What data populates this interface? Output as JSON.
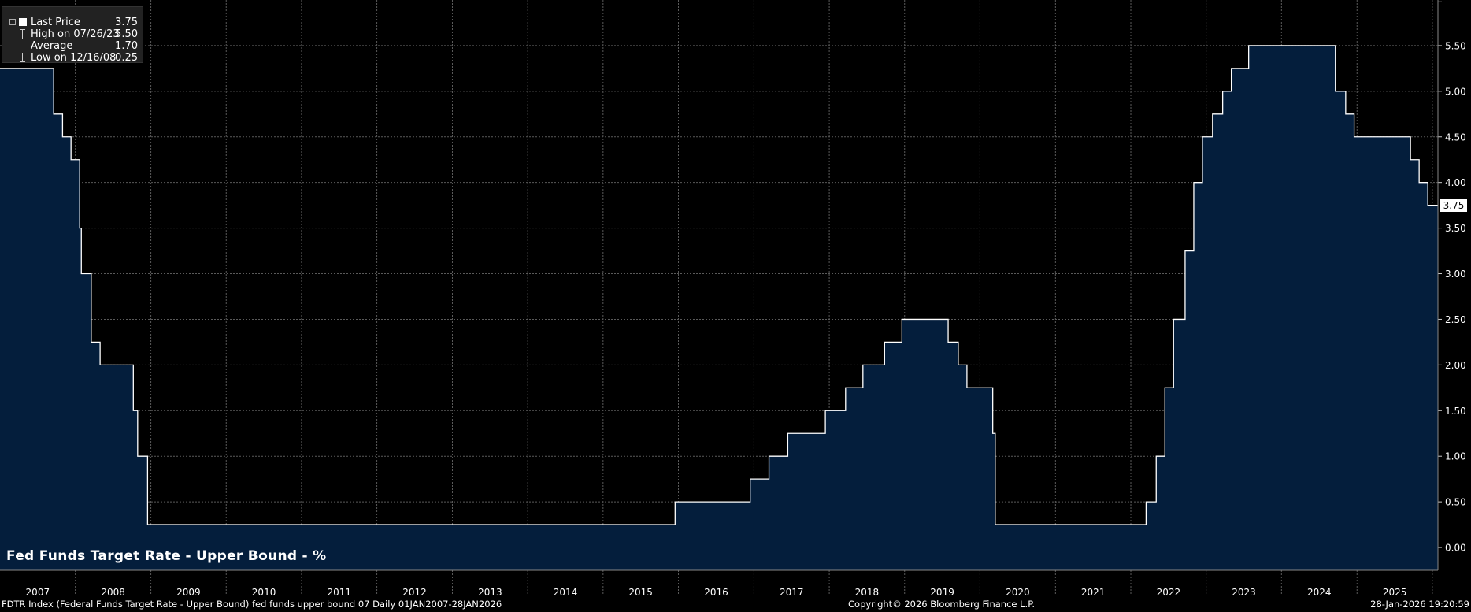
{
  "legend": {
    "items": [
      {
        "label": "Last Price",
        "value": "3.75"
      },
      {
        "label": "High on 07/26/23",
        "value": "5.50"
      },
      {
        "label": "Average",
        "value": "1.70"
      },
      {
        "label": "Low on 12/16/08",
        "value": "0.25"
      }
    ]
  },
  "last_badge": "3.75",
  "colors": {
    "area_fill": "#041e3c",
    "line": "#ffffff",
    "grid": "#5a5a5a",
    "background": "#000000"
  },
  "footer": {
    "left": "FDTR Index (Federal Funds Target Rate - Upper Bound) fed funds upper bound 07 Daily 01JAN2007-28JAN2026",
    "center": "Copyright© 2026 Bloomberg Finance L.P.",
    "right": "28-Jan-2026 19:20:59"
  },
  "chart_data": {
    "type": "area",
    "title": "Fed Funds Target Rate - Upper Bound - %",
    "x_ticks": [
      "2007",
      "2008",
      "2009",
      "2010",
      "2011",
      "2012",
      "2013",
      "2014",
      "2015",
      "2016",
      "2017",
      "2018",
      "2019",
      "2020",
      "2021",
      "2022",
      "2023",
      "2024",
      "2025"
    ],
    "y_ticks": [
      "0.00",
      "0.50",
      "1.00",
      "1.50",
      "2.00",
      "2.50",
      "3.00",
      "3.50",
      "4.00",
      "4.50",
      "5.00",
      "5.50"
    ],
    "ylim": [
      -0.25,
      6.0
    ],
    "xlim": [
      "2007-01-01",
      "2026-01-28"
    ],
    "grid": true,
    "legend_position": "top-left",
    "series": [
      {
        "points": [
          [
            "2007-01-01",
            5.25
          ],
          [
            "2007-09-18",
            4.75
          ],
          [
            "2007-10-31",
            4.5
          ],
          [
            "2007-12-11",
            4.25
          ],
          [
            "2008-01-22",
            3.5
          ],
          [
            "2008-01-30",
            3.0
          ],
          [
            "2008-03-18",
            2.25
          ],
          [
            "2008-04-30",
            2.0
          ],
          [
            "2008-10-08",
            1.5
          ],
          [
            "2008-10-29",
            1.0
          ],
          [
            "2008-12-16",
            0.25
          ],
          [
            "2015-12-16",
            0.5
          ],
          [
            "2016-12-14",
            0.75
          ],
          [
            "2017-03-15",
            1.0
          ],
          [
            "2017-06-14",
            1.25
          ],
          [
            "2017-12-13",
            1.5
          ],
          [
            "2018-03-21",
            1.75
          ],
          [
            "2018-06-13",
            2.0
          ],
          [
            "2018-09-26",
            2.25
          ],
          [
            "2018-12-19",
            2.5
          ],
          [
            "2019-07-31",
            2.25
          ],
          [
            "2019-09-18",
            2.0
          ],
          [
            "2019-10-30",
            1.75
          ],
          [
            "2020-03-03",
            1.25
          ],
          [
            "2020-03-15",
            0.25
          ],
          [
            "2022-03-16",
            0.5
          ],
          [
            "2022-05-04",
            1.0
          ],
          [
            "2022-06-15",
            1.75
          ],
          [
            "2022-07-27",
            2.5
          ],
          [
            "2022-09-21",
            3.25
          ],
          [
            "2022-11-02",
            4.0
          ],
          [
            "2022-12-14",
            4.5
          ],
          [
            "2023-02-01",
            4.75
          ],
          [
            "2023-03-22",
            5.0
          ],
          [
            "2023-05-03",
            5.25
          ],
          [
            "2023-07-26",
            5.5
          ],
          [
            "2024-09-18",
            5.0
          ],
          [
            "2024-11-07",
            4.75
          ],
          [
            "2024-12-18",
            4.5
          ],
          [
            "2025-09-17",
            4.25
          ],
          [
            "2025-10-29",
            4.0
          ],
          [
            "2025-12-10",
            3.75
          ],
          [
            "2026-01-28",
            3.75
          ]
        ]
      }
    ]
  }
}
